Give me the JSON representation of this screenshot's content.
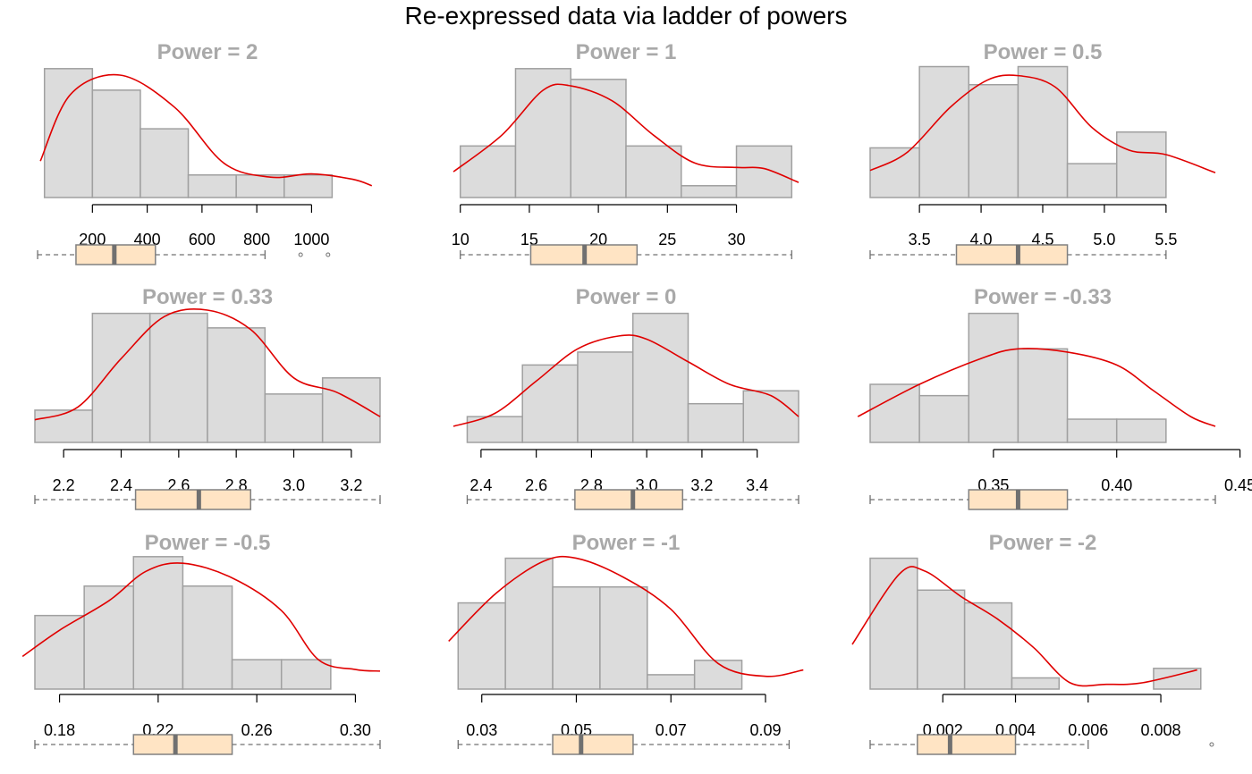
{
  "title": "Re-expressed data via ladder of powers",
  "colors": {
    "bar_fill": "#DCDCDC",
    "bar_stroke": "#A0A0A0",
    "density": "#E00000",
    "box_fill": "#FFE4C4",
    "box_stroke": "#808080",
    "median": "#707070",
    "panel_title": "#A9A9A9"
  },
  "chart_data": [
    {
      "type": "histogram",
      "title": "Power =  2",
      "breaks": [
        25,
        200,
        375,
        550,
        725,
        900,
        1075,
        1250
      ],
      "counts": [
        6.0,
        5.0,
        3.2,
        1.05,
        1.05,
        1.05,
        0
      ],
      "density": [
        [
          10,
          1.7
        ],
        [
          120,
          4.8
        ],
        [
          300,
          5.7
        ],
        [
          500,
          4.2
        ],
        [
          680,
          1.6
        ],
        [
          850,
          0.95
        ],
        [
          1000,
          1.1
        ],
        [
          1150,
          0.85
        ],
        [
          1220,
          0.55
        ]
      ],
      "ticks": [
        200,
        400,
        600,
        800,
        1000
      ],
      "tick_labels": [
        "200",
        "400",
        "600",
        "800",
        "1000"
      ],
      "xlim": [
        -10,
        1250
      ],
      "ymax": 6.2,
      "box": {
        "whisker_low": 0,
        "q1": 140,
        "median": 280,
        "q3": 430,
        "whisker_high": 830,
        "outliers": [
          960,
          1060
        ]
      }
    },
    {
      "type": "histogram",
      "title": "Power =  1",
      "breaks": [
        10,
        14,
        18,
        22,
        26,
        30,
        34
      ],
      "counts": [
        2.4,
        6.0,
        5.5,
        2.4,
        0.55,
        2.4
      ],
      "density": [
        [
          9.5,
          1.2
        ],
        [
          13,
          2.9
        ],
        [
          16,
          5.0
        ],
        [
          18,
          5.2
        ],
        [
          21,
          4.5
        ],
        [
          24,
          2.9
        ],
        [
          27,
          1.6
        ],
        [
          30,
          1.4
        ],
        [
          32,
          1.35
        ],
        [
          34.5,
          0.7
        ]
      ],
      "ticks": [
        10,
        15,
        20,
        25,
        30
      ],
      "tick_labels": [
        "10",
        "15",
        "20",
        "25",
        "30"
      ],
      "xlim": [
        9.5,
        34.5
      ],
      "ymax": 6.2,
      "box": {
        "whisker_low": 10,
        "q1": 15.1,
        "median": 19.0,
        "q3": 22.8,
        "whisker_high": 34
      },
      "outliers": []
    },
    {
      "type": "histogram",
      "title": "Power =  0.5",
      "breaks": [
        3.1,
        3.5,
        3.9,
        4.3,
        4.7,
        5.1,
        5.5,
        5.9
      ],
      "counts": [
        2.2,
        5.8,
        5.0,
        5.8,
        1.5,
        2.9,
        0
      ],
      "density": [
        [
          3.1,
          1.2
        ],
        [
          3.4,
          2.0
        ],
        [
          3.75,
          4.0
        ],
        [
          4.05,
          5.2
        ],
        [
          4.3,
          5.4
        ],
        [
          4.6,
          4.9
        ],
        [
          4.9,
          3.1
        ],
        [
          5.2,
          2.1
        ],
        [
          5.5,
          1.9
        ],
        [
          5.9,
          1.1
        ]
      ],
      "ticks": [
        3.5,
        4.0,
        4.5,
        5.0,
        5.5
      ],
      "tick_labels": [
        "3.5",
        "4.0",
        "4.5",
        "5.0",
        "5.5"
      ],
      "xlim": [
        3.1,
        5.9
      ],
      "ymax": 5.9,
      "box": {
        "whisker_low": 3.1,
        "q1": 3.8,
        "median": 4.3,
        "q3": 4.7,
        "whisker_high": 5.5
      }
    },
    {
      "type": "histogram",
      "title": "Power =  0.33",
      "breaks": [
        2.1,
        2.3,
        2.5,
        2.7,
        2.9,
        3.1,
        3.3
      ],
      "counts": [
        1.0,
        4.0,
        4.0,
        3.55,
        1.5,
        2.0
      ],
      "density": [
        [
          2.1,
          0.7
        ],
        [
          2.25,
          1.1
        ],
        [
          2.4,
          2.6
        ],
        [
          2.55,
          3.9
        ],
        [
          2.7,
          4.1
        ],
        [
          2.85,
          3.5
        ],
        [
          3.0,
          2.0
        ],
        [
          3.15,
          1.55
        ],
        [
          3.3,
          0.8
        ]
      ],
      "ticks": [
        2.2,
        2.4,
        2.6,
        2.8,
        3.0,
        3.2
      ],
      "tick_labels": [
        "2.2",
        "2.4",
        "2.6",
        "2.8",
        "3.0",
        "3.2"
      ],
      "xlim": [
        2.1,
        3.3
      ],
      "ymax": 4.1,
      "box": {
        "whisker_low": 2.1,
        "q1": 2.45,
        "median": 2.67,
        "q3": 2.85,
        "whisker_high": 3.3
      }
    },
    {
      "type": "histogram",
      "title": "Power =  0",
      "breaks": [
        2.35,
        2.55,
        2.75,
        2.95,
        3.15,
        3.35,
        3.55
      ],
      "counts": [
        0.8,
        2.4,
        2.8,
        4.0,
        1.2,
        1.6
      ],
      "density": [
        [
          2.3,
          0.5
        ],
        [
          2.45,
          0.9
        ],
        [
          2.6,
          1.9
        ],
        [
          2.75,
          2.9
        ],
        [
          2.9,
          3.3
        ],
        [
          3.0,
          3.2
        ],
        [
          3.15,
          2.5
        ],
        [
          3.3,
          1.8
        ],
        [
          3.45,
          1.45
        ],
        [
          3.55,
          0.8
        ]
      ],
      "ticks": [
        2.4,
        2.6,
        2.8,
        3.0,
        3.2,
        3.4
      ],
      "tick_labels": [
        "2.4",
        "2.6",
        "2.8",
        "3.0",
        "3.2",
        "3.4"
      ],
      "xlim": [
        2.3,
        3.55
      ],
      "ymax": 4.1,
      "box": {
        "whisker_low": 2.35,
        "q1": 2.74,
        "median": 2.95,
        "q3": 3.13,
        "whisker_high": 3.55
      }
    },
    {
      "type": "histogram",
      "title": "Power =  -0.33",
      "breaks": [
        0.3,
        0.32,
        0.34,
        0.36,
        0.38,
        0.4,
        0.42,
        0.44
      ],
      "counts": [
        1.8,
        1.45,
        4.0,
        2.9,
        0.72,
        0.72,
        0
      ],
      "density": [
        [
          0.295,
          0.8
        ],
        [
          0.32,
          1.8
        ],
        [
          0.345,
          2.6
        ],
        [
          0.36,
          2.9
        ],
        [
          0.38,
          2.8
        ],
        [
          0.4,
          2.4
        ],
        [
          0.415,
          1.6
        ],
        [
          0.43,
          0.8
        ],
        [
          0.44,
          0.5
        ]
      ],
      "ticks": [
        0.35,
        0.4,
        0.45
      ],
      "tick_labels": [
        "0.35",
        "0.40",
        "0.45"
      ],
      "xlim": [
        0.3,
        0.44
      ],
      "ymax": 4.1,
      "box": {
        "whisker_low": 0.3,
        "q1": 0.34,
        "median": 0.36,
        "q3": 0.38,
        "whisker_high": 0.44
      }
    },
    {
      "type": "histogram",
      "title": "Power =  -0.5",
      "breaks": [
        0.17,
        0.19,
        0.21,
        0.23,
        0.25,
        0.27,
        0.29,
        0.31
      ],
      "counts": [
        2.25,
        3.15,
        4.05,
        3.15,
        0.9,
        0.9,
        0
      ],
      "density": [
        [
          0.165,
          1.0
        ],
        [
          0.18,
          1.8
        ],
        [
          0.2,
          2.7
        ],
        [
          0.215,
          3.6
        ],
        [
          0.23,
          3.85
        ],
        [
          0.25,
          3.4
        ],
        [
          0.27,
          2.4
        ],
        [
          0.285,
          0.9
        ],
        [
          0.3,
          0.6
        ],
        [
          0.31,
          0.55
        ]
      ],
      "ticks": [
        0.18,
        0.22,
        0.26,
        0.3
      ],
      "tick_labels": [
        "0.18",
        "0.22",
        "0.26",
        "0.30"
      ],
      "xlim": [
        0.17,
        0.31
      ],
      "ymax": 4.1,
      "box": {
        "whisker_low": 0.17,
        "q1": 0.21,
        "median": 0.227,
        "q3": 0.25,
        "whisker_high": 0.31
      }
    },
    {
      "type": "histogram",
      "title": "Power =  -1",
      "breaks": [
        0.025,
        0.035,
        0.045,
        0.055,
        0.065,
        0.075,
        0.085,
        0.095
      ],
      "counts": [
        2.7,
        4.1,
        3.2,
        3.2,
        0.45,
        0.9,
        0
      ],
      "density": [
        [
          0.023,
          1.5
        ],
        [
          0.033,
          3.0
        ],
        [
          0.043,
          4.0
        ],
        [
          0.05,
          4.1
        ],
        [
          0.06,
          3.5
        ],
        [
          0.07,
          2.5
        ],
        [
          0.08,
          0.8
        ],
        [
          0.09,
          0.4
        ],
        [
          0.098,
          0.6
        ]
      ],
      "ticks": [
        0.03,
        0.05,
        0.07,
        0.09
      ],
      "tick_labels": [
        "0.03",
        "0.05",
        "0.07",
        "0.09"
      ],
      "xlim": [
        0.024,
        0.097
      ],
      "ymax": 4.2,
      "box": {
        "whisker_low": 0.025,
        "q1": 0.045,
        "median": 0.051,
        "q3": 0.062,
        "whisker_high": 0.095
      }
    },
    {
      "type": "histogram",
      "title": "Power =  -2",
      "breaks": [
        0.0,
        0.0013,
        0.0026,
        0.0039,
        0.0052,
        0.0065,
        0.0078,
        0.0091
      ],
      "counts": [
        4.1,
        3.1,
        2.7,
        0.35,
        0,
        0,
        0.65
      ],
      "density": [
        [
          -0.0005,
          1.4
        ],
        [
          0.0008,
          3.6
        ],
        [
          0.0015,
          3.7
        ],
        [
          0.0025,
          2.9
        ],
        [
          0.0035,
          2.2
        ],
        [
          0.0045,
          1.3
        ],
        [
          0.0055,
          0.2
        ],
        [
          0.0065,
          0.15
        ],
        [
          0.0075,
          0.2
        ],
        [
          0.009,
          0.6
        ]
      ],
      "ticks": [
        0.002,
        0.004,
        0.006,
        0.008
      ],
      "tick_labels": [
        "0.002",
        "0.004",
        "0.006",
        "0.008"
      ],
      "xlim": [
        0.0,
        0.0095
      ],
      "ymax": 4.2,
      "box": {
        "whisker_low": 0.0,
        "q1": 0.0013,
        "median": 0.0022,
        "q3": 0.004,
        "whisker_high": 0.006,
        "outliers": [
          0.0094
        ]
      }
    }
  ]
}
